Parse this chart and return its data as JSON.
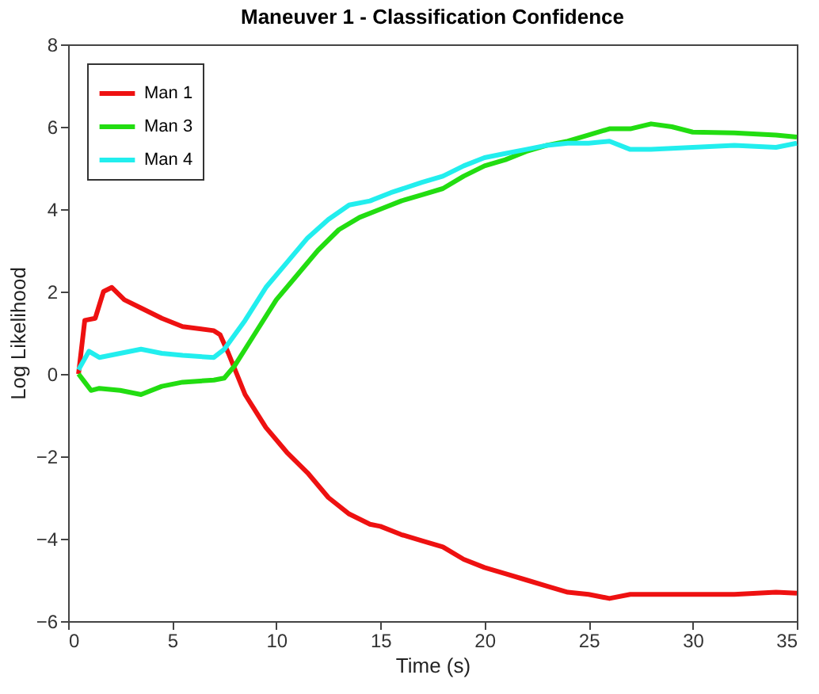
{
  "chart_data": {
    "type": "line",
    "title": "Maneuver 1 - Classification Confidence",
    "xlabel": "Time (s)",
    "ylabel": "Log Likelihood",
    "xlim": [
      0,
      35
    ],
    "ylim": [
      -6,
      8
    ],
    "xticks": [
      0,
      5,
      10,
      15,
      20,
      25,
      30,
      35
    ],
    "yticks": [
      -6,
      -4,
      -2,
      0,
      2,
      4,
      6,
      8
    ],
    "grid": false,
    "legend": "top left",
    "line_style": "solid",
    "marker": "none",
    "series": [
      {
        "name": "Man 1",
        "color": "#ee1111",
        "x": [
          0.5,
          0.8,
          1.3,
          1.7,
          2.1,
          2.7,
          3.5,
          4.5,
          5.5,
          7,
          7.3,
          7.7,
          8.5,
          9.5,
          10.5,
          11.5,
          12.5,
          13.5,
          14.5,
          15,
          16,
          17,
          18,
          19,
          20,
          21,
          22,
          23,
          24,
          25,
          26,
          27,
          28,
          30,
          32,
          34,
          35
        ],
        "values": [
          0,
          1.3,
          1.35,
          2.0,
          2.1,
          1.8,
          1.6,
          1.35,
          1.15,
          1.05,
          0.95,
          0.5,
          -0.5,
          -1.3,
          -1.9,
          -2.4,
          -3.0,
          -3.4,
          -3.65,
          -3.7,
          -3.9,
          -4.05,
          -4.2,
          -4.5,
          -4.7,
          -4.85,
          -5.0,
          -5.15,
          -5.3,
          -5.35,
          -5.45,
          -5.35,
          -5.35,
          -5.35,
          -5.35,
          -5.3,
          -5.32
        ]
      },
      {
        "name": "Man 3",
        "color": "#22dd11",
        "x": [
          0.5,
          0.8,
          1.1,
          1.5,
          2.5,
          3.5,
          4.5,
          5.5,
          7,
          7.5,
          8,
          9,
          10,
          11,
          12,
          13,
          14,
          15,
          16,
          17,
          18,
          19,
          20,
          21,
          22,
          23,
          24,
          25,
          26,
          27,
          28,
          29,
          30,
          32,
          34,
          35
        ],
        "values": [
          0,
          -0.2,
          -0.4,
          -0.35,
          -0.4,
          -0.5,
          -0.3,
          -0.2,
          -0.15,
          -0.1,
          0.2,
          1.0,
          1.8,
          2.4,
          3.0,
          3.5,
          3.8,
          4.0,
          4.2,
          4.35,
          4.5,
          4.8,
          5.05,
          5.2,
          5.4,
          5.55,
          5.65,
          5.8,
          5.95,
          5.95,
          6.07,
          6.0,
          5.87,
          5.85,
          5.8,
          5.75
        ]
      },
      {
        "name": "Man 4",
        "color": "#22eeee",
        "x": [
          0.5,
          1,
          1.5,
          2.5,
          3.5,
          4.5,
          5.5,
          7,
          7.5,
          8.5,
          9.5,
          10.5,
          11.5,
          12.5,
          13.5,
          14.5,
          15.5,
          17,
          18,
          19,
          20,
          21,
          22,
          23,
          24,
          25,
          26,
          27,
          28,
          30,
          32,
          34,
          35
        ],
        "values": [
          0.1,
          0.55,
          0.4,
          0.5,
          0.6,
          0.5,
          0.45,
          0.4,
          0.6,
          1.3,
          2.1,
          2.7,
          3.3,
          3.75,
          4.1,
          4.2,
          4.4,
          4.65,
          4.8,
          5.05,
          5.25,
          5.35,
          5.45,
          5.55,
          5.6,
          5.6,
          5.65,
          5.45,
          5.45,
          5.5,
          5.55,
          5.5,
          5.6
        ]
      }
    ]
  }
}
